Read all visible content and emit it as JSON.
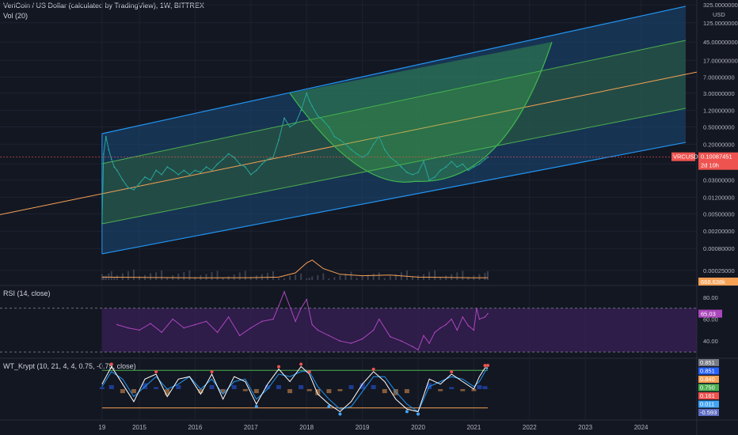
{
  "header": {
    "main_title": "VeriCoin / US Dollar (calculated by TradingView), 1W, BITTREX",
    "vol_label": "Vol (20)",
    "rsi_label": "RSI (14, close)",
    "wt_label": "WT_Krypt (10, 21, 4, 4, 0.75, -0.75, close)"
  },
  "price_axis": {
    "currency": "USD",
    "ticks": [
      "325.00000000",
      "125.00000000",
      "45.00000000",
      "17.00000000",
      "7.00000000",
      "3.00000000",
      "1.20000000",
      "0.50000000",
      "0.20000000",
      "0.07000000",
      "0.03000000",
      "0.01200000",
      "0.00500000",
      "0.00200000",
      "0.00080000",
      "0.00025000"
    ],
    "ticks_numeric": [
      325,
      125,
      45,
      17,
      7,
      3,
      1.2,
      0.5,
      0.2,
      0.07,
      0.03,
      0.012,
      0.005,
      0.002,
      0.0008,
      0.00025
    ],
    "last_price_tag": {
      "symbol": "VRCUSD",
      "value": "0.10087451",
      "countdown": "2d 10h",
      "color": "#ef5350"
    },
    "volume_tag": {
      "value": "668.638k",
      "color": "#f7a155"
    }
  },
  "rsi_axis": {
    "ticks": [
      "80.00",
      "60.00",
      "40.00"
    ],
    "value_tag": {
      "value": "65.03",
      "color": "#ab47bc"
    }
  },
  "wt_axis": {
    "tags": [
      {
        "value": "0.851",
        "color": "#787b86",
        "numeric": 0.851
      },
      {
        "value": "0.851",
        "color": "#2962ff",
        "numeric": 0.851
      },
      {
        "value": "0.840",
        "color": "#f7a155",
        "numeric": 0.84
      },
      {
        "value": "0.750",
        "color": "#4caf50",
        "numeric": 0.75
      },
      {
        "value": "0.161",
        "color": "#ef5350",
        "numeric": 0.161
      },
      {
        "value": "0.011",
        "color": "#42a5f5",
        "numeric": 0.011
      },
      {
        "value": "-0.593",
        "color": "#5c6bc0",
        "numeric": -0.593
      }
    ]
  },
  "time_axis": {
    "ticks": [
      "19",
      "2015",
      "2016",
      "2017",
      "2018",
      "2019",
      "2020",
      "2021",
      "2022",
      "2023",
      "2024"
    ],
    "ticks_numeric": [
      2014.33,
      2015,
      2016,
      2017,
      2018,
      2019,
      2020,
      2021,
      2022,
      2023,
      2024
    ]
  },
  "chart_data": [
    {
      "type": "line",
      "title": "VeriCoin / US Dollar (calculated by TradingView), 1W, BITTREX",
      "yscale": "log",
      "ylim": [
        0.00015,
        325
      ],
      "xlim": [
        2012.5,
        2025.0
      ],
      "ylabel": "USD",
      "series": [
        {
          "name": "VRCUSD",
          "x": [
            2014.33,
            2014.36,
            2014.4,
            2014.45,
            2014.5,
            2014.55,
            2014.6,
            2014.7,
            2014.8,
            2014.9,
            2015.0,
            2015.1,
            2015.2,
            2015.3,
            2015.4,
            2015.5,
            2015.6,
            2015.7,
            2015.8,
            2015.9,
            2016.0,
            2016.1,
            2016.2,
            2016.3,
            2016.4,
            2016.5,
            2016.6,
            2016.7,
            2016.8,
            2016.9,
            2017.0,
            2017.1,
            2017.2,
            2017.3,
            2017.4,
            2017.5,
            2017.6,
            2017.7,
            2017.8,
            2017.9,
            2018.0,
            2018.05,
            2018.1,
            2018.2,
            2018.3,
            2018.4,
            2018.5,
            2018.6,
            2018.7,
            2018.8,
            2018.9,
            2019.0,
            2019.1,
            2019.2,
            2019.3,
            2019.4,
            2019.5,
            2019.6,
            2019.7,
            2019.8,
            2019.9,
            2020.0,
            2020.1,
            2020.2,
            2020.3,
            2020.4,
            2020.5,
            2020.6,
            2020.7,
            2020.8,
            2020.9,
            2021.0,
            2021.1,
            2021.2,
            2021.25
          ],
          "values": [
            0.003,
            0.12,
            0.3,
            0.15,
            0.09,
            0.06,
            0.05,
            0.03,
            0.02,
            0.018,
            0.025,
            0.035,
            0.03,
            0.05,
            0.04,
            0.06,
            0.05,
            0.04,
            0.05,
            0.04,
            0.05,
            0.045,
            0.06,
            0.05,
            0.07,
            0.09,
            0.12,
            0.1,
            0.07,
            0.06,
            0.04,
            0.05,
            0.07,
            0.09,
            0.1,
            0.25,
            0.8,
            0.5,
            0.6,
            1.2,
            3.0,
            2.0,
            1.5,
            0.9,
            0.7,
            0.5,
            0.3,
            0.25,
            0.2,
            0.15,
            0.12,
            0.1,
            0.12,
            0.2,
            0.3,
            0.15,
            0.1,
            0.08,
            0.06,
            0.045,
            0.04,
            0.045,
            0.08,
            0.03,
            0.035,
            0.05,
            0.06,
            0.08,
            0.06,
            0.07,
            0.05,
            0.06,
            0.07,
            0.09,
            0.1009
          ]
        },
        {
          "name": "Vol MA",
          "x": [
            2014.33,
            2015.0,
            2016.0,
            2017.0,
            2017.5,
            2017.8,
            2018.0,
            2018.1,
            2018.3,
            2018.6,
            2019.0,
            2019.5,
            2020.0,
            2020.5,
            2021.0,
            2021.25
          ],
          "values": [
            2,
            1.8,
            1.5,
            1.6,
            2,
            5,
            12,
            14,
            8,
            4,
            3,
            3.5,
            2,
            1.8,
            1.5,
            1.6
          ]
        }
      ],
      "regression_channel": {
        "x_start": 2014.33,
        "x_end": 2024.8,
        "upper_start": 0.35,
        "upper_end": 300,
        "lower_start": 0.0006,
        "lower_end": 0.22
      },
      "bowl_arc": {
        "x_start": 2017.7,
        "x_min": 2019.95,
        "x_end": 2022.4,
        "y_start": 3.0,
        "y_min": 0.028,
        "y_end": 45
      }
    },
    {
      "type": "line",
      "title": "RSI (14, close)",
      "ylim": [
        25,
        90
      ],
      "series": [
        {
          "name": "RSI",
          "x": [
            2014.6,
            2014.8,
            2015.0,
            2015.2,
            2015.4,
            2015.6,
            2015.8,
            2016.0,
            2016.2,
            2016.4,
            2016.6,
            2016.8,
            2017.0,
            2017.2,
            2017.4,
            2017.5,
            2017.6,
            2017.8,
            2017.9,
            2018.0,
            2018.1,
            2018.2,
            2018.4,
            2018.6,
            2018.8,
            2019.0,
            2019.2,
            2019.3,
            2019.5,
            2019.7,
            2019.9,
            2020.0,
            2020.1,
            2020.2,
            2020.3,
            2020.4,
            2020.5,
            2020.6,
            2020.7,
            2020.8,
            2020.9,
            2021.0,
            2021.05,
            2021.1,
            2021.2,
            2021.25
          ],
          "values": [
            55,
            52,
            50,
            56,
            48,
            60,
            52,
            55,
            58,
            48,
            62,
            45,
            52,
            58,
            60,
            72,
            85,
            58,
            70,
            78,
            55,
            50,
            45,
            40,
            38,
            42,
            50,
            60,
            44,
            40,
            35,
            32,
            45,
            38,
            48,
            52,
            55,
            60,
            50,
            62,
            54,
            50,
            70,
            60,
            62,
            65.03
          ]
        }
      ],
      "bands": [
        70,
        30
      ]
    },
    {
      "type": "line",
      "title": "WT_Krypt (10, 21, 4, 4, 0.75, -0.75, close)",
      "ylim": [
        -1.2,
        1.2
      ],
      "series": [
        {
          "name": "WT1",
          "x": [
            2014.33,
            2014.5,
            2014.7,
            2014.9,
            2015.1,
            2015.3,
            2015.5,
            2015.7,
            2015.9,
            2016.1,
            2016.3,
            2016.5,
            2016.7,
            2016.9,
            2017.1,
            2017.3,
            2017.5,
            2017.7,
            2017.9,
            2018.05,
            2018.2,
            2018.4,
            2018.6,
            2018.8,
            2019.0,
            2019.2,
            2019.4,
            2019.6,
            2019.8,
            2020.0,
            2020.2,
            2020.4,
            2020.6,
            2020.8,
            2021.0,
            2021.1,
            2021.2,
            2021.25
          ],
          "values": [
            0.2,
            0.9,
            0.2,
            -0.5,
            0.4,
            0.6,
            -0.3,
            0.4,
            0.5,
            -0.2,
            0.6,
            -0.4,
            0.5,
            0.3,
            -0.6,
            0.2,
            0.8,
            0.3,
            0.9,
            0.6,
            -0.2,
            -0.6,
            -0.9,
            -0.5,
            0.2,
            0.7,
            0.3,
            -0.4,
            -0.8,
            -0.9,
            0.4,
            0.2,
            0.6,
            0.3,
            0.0,
            0.5,
            0.85,
            0.851
          ]
        },
        {
          "name": "WT2",
          "x": [
            2014.33,
            2014.5,
            2014.7,
            2014.9,
            2015.1,
            2015.3,
            2015.5,
            2015.7,
            2015.9,
            2016.1,
            2016.3,
            2016.5,
            2016.7,
            2016.9,
            2017.1,
            2017.3,
            2017.5,
            2017.7,
            2017.9,
            2018.05,
            2018.2,
            2018.4,
            2018.6,
            2018.8,
            2019.0,
            2019.2,
            2019.4,
            2019.6,
            2019.8,
            2020.0,
            2020.2,
            2020.4,
            2020.6,
            2020.8,
            2021.0,
            2021.1,
            2021.2,
            2021.25
          ],
          "values": [
            0.1,
            0.7,
            0.4,
            -0.3,
            0.1,
            0.5,
            0.0,
            0.2,
            0.5,
            0.0,
            0.4,
            -0.2,
            0.3,
            0.4,
            -0.4,
            0.0,
            0.6,
            0.5,
            0.7,
            0.7,
            0.1,
            -0.4,
            -0.8,
            -0.7,
            -0.1,
            0.5,
            0.5,
            -0.1,
            -0.6,
            -0.9,
            0.1,
            0.3,
            0.5,
            0.4,
            0.1,
            0.3,
            0.7,
            0.84
          ]
        }
      ],
      "levels": {
        "overbought": 0.75,
        "oversold": -0.75
      }
    }
  ],
  "colors": {
    "background": "#131722",
    "grid": "#1e2230",
    "channel_outer": "#2196f3",
    "channel_fill": "#1c4a7a",
    "channel_inner": "#4caf50",
    "midline": "#f7a155",
    "bowl": "#3fb950",
    "rsi_line": "#ab47bc",
    "rsi_band": "#3a1f5a",
    "wt1": "#ffffff",
    "wt2": "#2196f3",
    "wt_bull_fill": "#4caf50",
    "wt_bear_fill": "#f7a155",
    "vol_bar": "#3a3f4f"
  }
}
